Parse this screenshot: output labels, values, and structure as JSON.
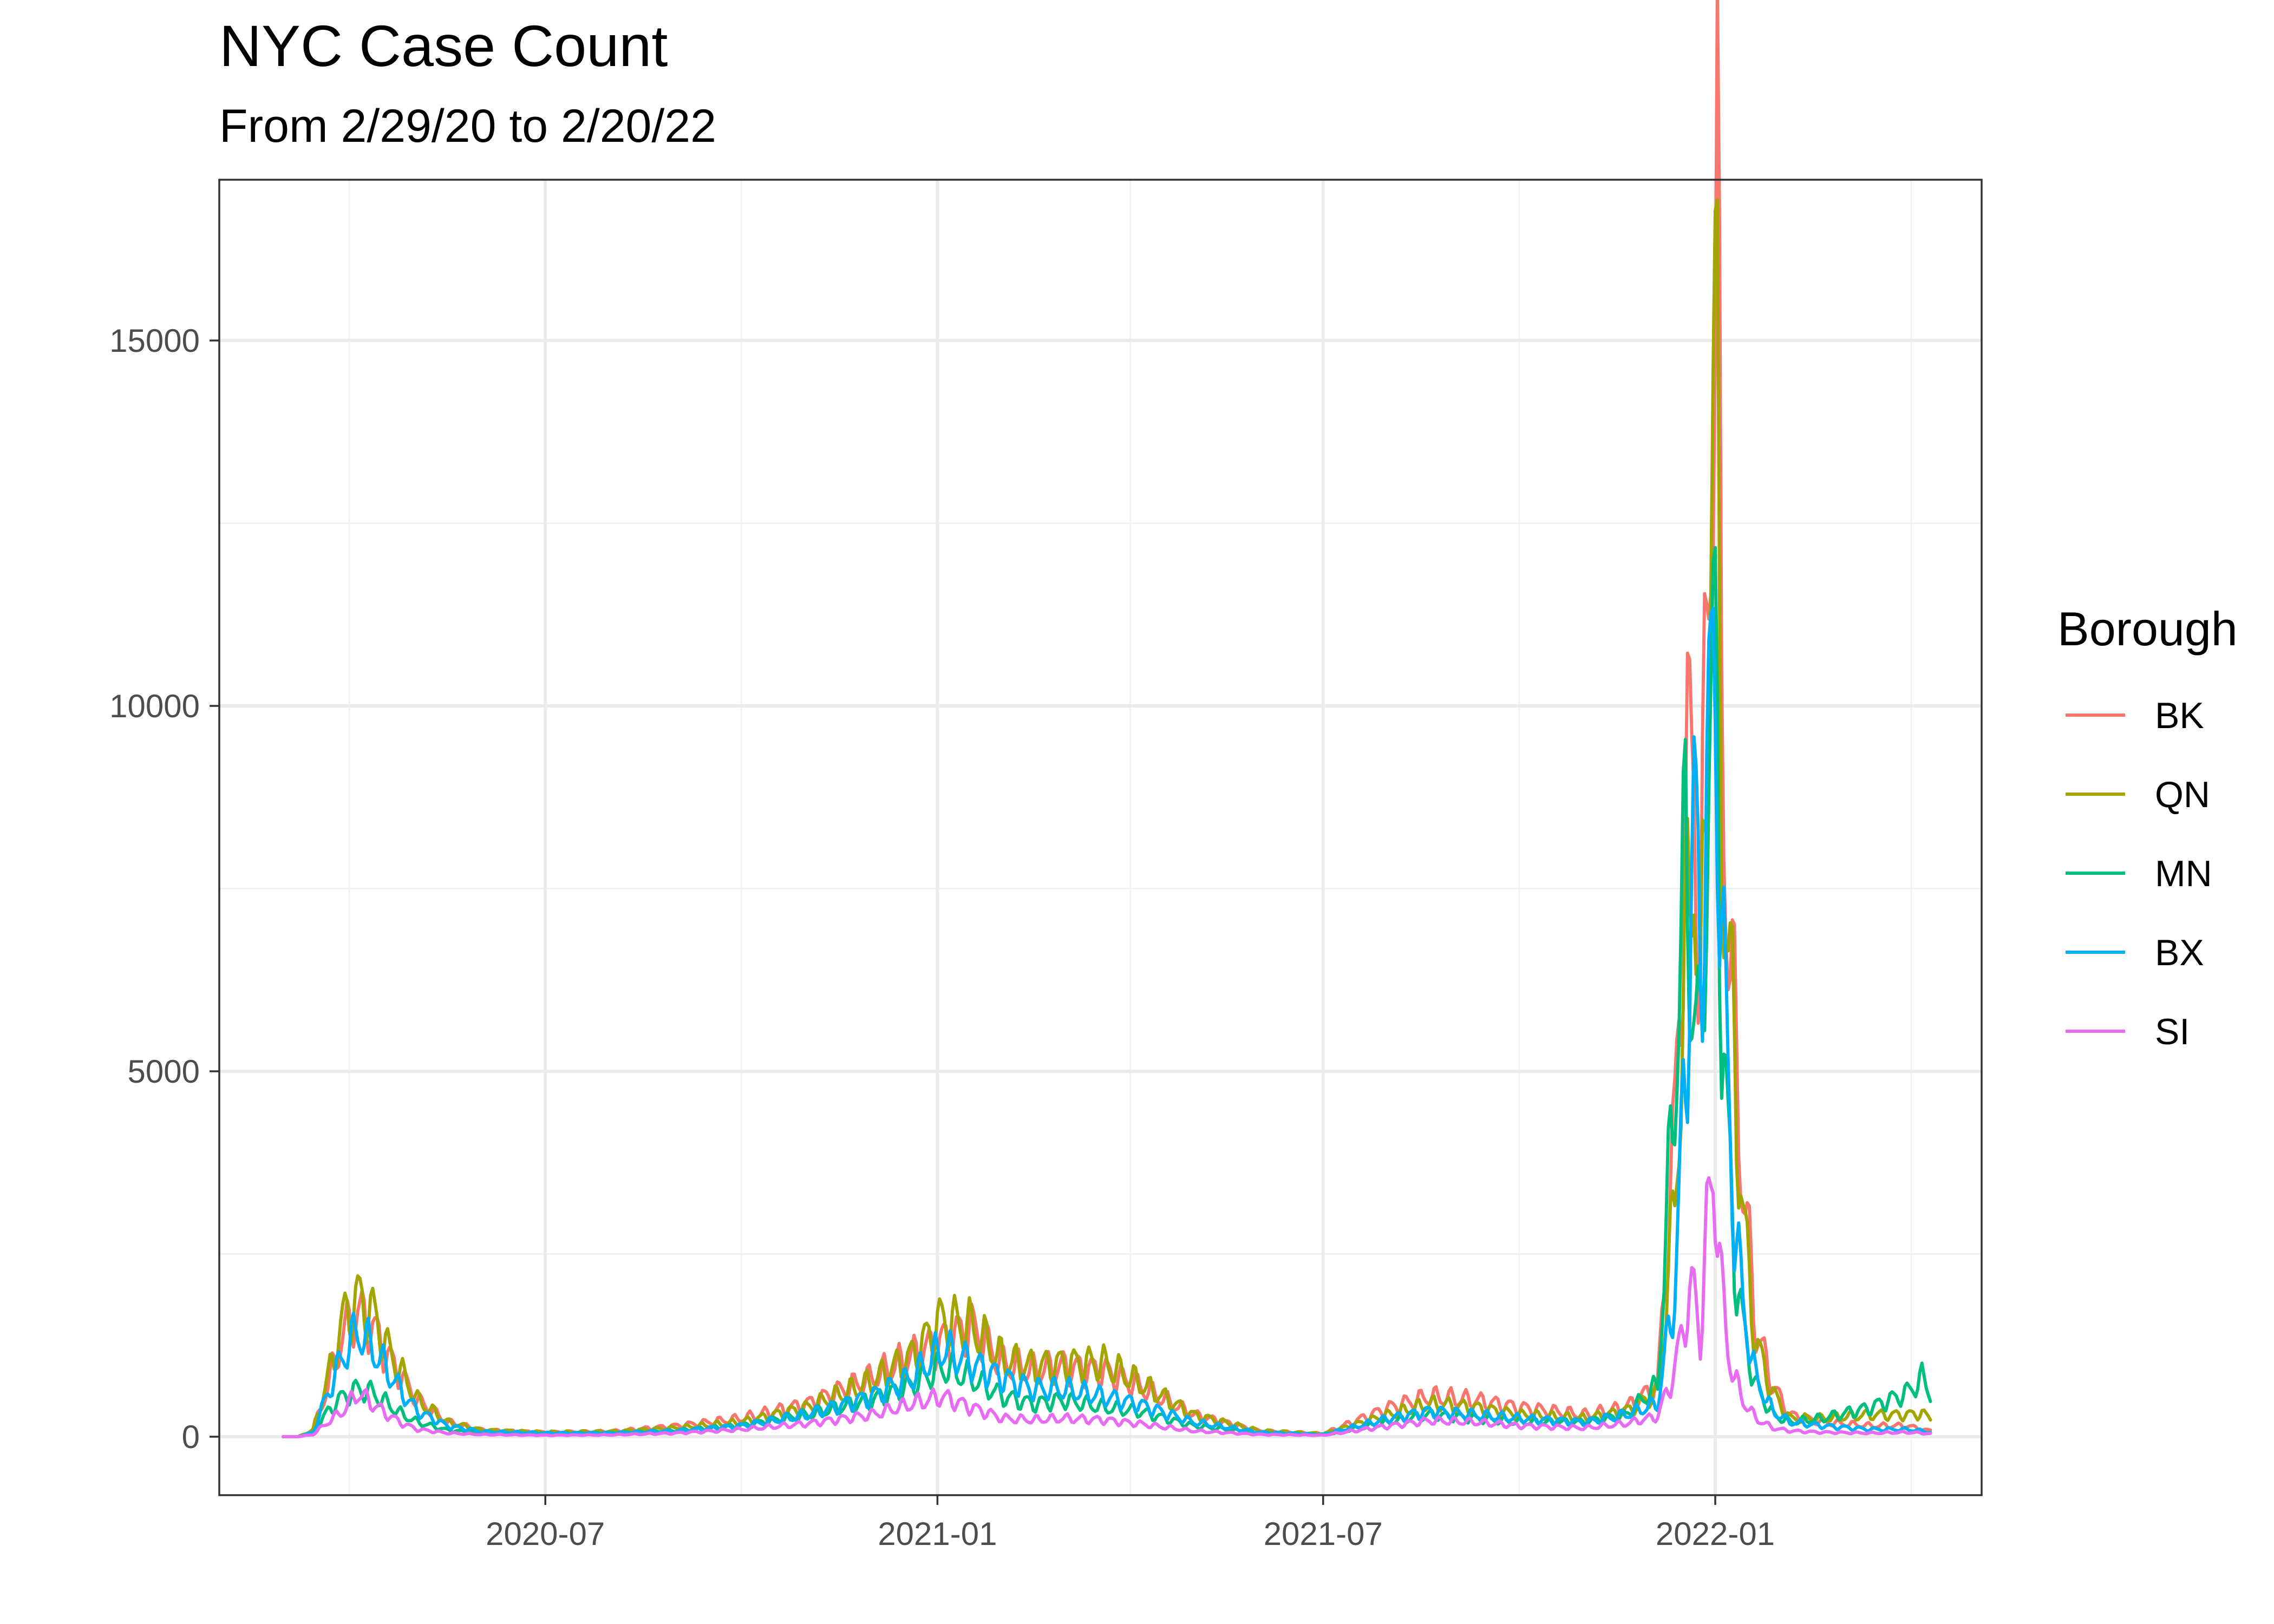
{
  "chart_data": {
    "type": "line",
    "title": "NYC Case Count",
    "subtitle": "From 2/29/20 to 2/20/22",
    "xlabel": "",
    "ylabel": "",
    "x_tick_labels": [
      "2020-07",
      "2021-01",
      "2021-07",
      "2022-01"
    ],
    "x_ticks": [
      "2020-07-01",
      "2021-01-01",
      "2021-07-01",
      "2022-01-01"
    ],
    "y_ticks": [
      0,
      5000,
      10000,
      15000
    ],
    "y_tick_labels": [
      "0",
      "5000",
      "10000",
      "15000"
    ],
    "ylim": [
      -800,
      17200
    ],
    "xlim": [
      "2020-01-30",
      "2022-05-06"
    ],
    "grid": true,
    "legend": {
      "title": "Borough",
      "placement": "right"
    },
    "x": [
      "2020-02-29",
      "2020-03-07",
      "2020-03-14",
      "2020-03-21",
      "2020-03-28",
      "2020-04-04",
      "2020-04-11",
      "2020-04-18",
      "2020-04-25",
      "2020-05-02",
      "2020-05-16",
      "2020-06-01",
      "2020-07-01",
      "2020-08-01",
      "2020-09-01",
      "2020-10-01",
      "2020-11-01",
      "2020-12-01",
      "2020-12-20",
      "2021-01-03",
      "2021-01-17",
      "2021-02-01",
      "2021-02-15",
      "2021-03-01",
      "2021-03-20",
      "2021-04-05",
      "2021-05-01",
      "2021-06-01",
      "2021-07-01",
      "2021-08-01",
      "2021-08-20",
      "2021-09-10",
      "2021-10-01",
      "2021-11-01",
      "2021-11-20",
      "2021-12-05",
      "2021-12-13",
      "2021-12-18",
      "2021-12-22",
      "2021-12-25",
      "2021-12-28",
      "2021-12-31",
      "2022-01-02",
      "2022-01-04",
      "2022-01-07",
      "2022-01-10",
      "2022-01-14",
      "2022-01-20",
      "2022-01-28",
      "2022-02-05",
      "2022-02-20",
      "2022-03-15",
      "2022-04-01",
      "2022-04-08",
      "2022-04-12"
    ],
    "series": [
      {
        "name": "BK",
        "color": "#F8766D",
        "values": [
          0,
          0,
          80,
          700,
          1400,
          1700,
          1500,
          1100,
          800,
          500,
          200,
          90,
          60,
          70,
          150,
          250,
          450,
          800,
          1100,
          1300,
          1500,
          1000,
          900,
          950,
          900,
          700,
          300,
          80,
          40,
          400,
          550,
          500,
          400,
          300,
          400,
          700,
          4200,
          8500,
          9400,
          6200,
          11000,
          15000,
          16500,
          10000,
          7200,
          5500,
          3500,
          1500,
          700,
          300,
          200,
          150,
          150,
          100,
          80
        ]
      },
      {
        "name": "QN",
        "color": "#A3A500",
        "values": [
          0,
          0,
          90,
          800,
          1600,
          1900,
          1700,
          1200,
          850,
          500,
          200,
          90,
          60,
          70,
          120,
          200,
          400,
          750,
          1100,
          1600,
          1500,
          1050,
          950,
          1000,
          1000,
          750,
          300,
          80,
          40,
          300,
          450,
          400,
          300,
          250,
          350,
          600,
          3200,
          6500,
          8500,
          5200,
          10000,
          14600,
          13500,
          9000,
          6500,
          5200,
          3000,
          1300,
          600,
          250,
          250,
          300,
          300,
          320,
          250
        ]
      },
      {
        "name": "MN",
        "color": "#00BF7D",
        "values": [
          0,
          0,
          50,
          350,
          550,
          650,
          600,
          450,
          300,
          200,
          90,
          50,
          40,
          50,
          80,
          150,
          300,
          500,
          700,
          950,
          800,
          550,
          450,
          500,
          400,
          350,
          150,
          50,
          30,
          200,
          300,
          250,
          200,
          200,
          300,
          700,
          4900,
          7900,
          6000,
          5000,
          8500,
          10200,
          10000,
          6000,
          4000,
          2500,
          1500,
          700,
          300,
          200,
          250,
          400,
          600,
          800,
          600
        ]
      },
      {
        "name": "BX",
        "color": "#00B0F6",
        "values": [
          0,
          0,
          60,
          600,
          1100,
          1450,
          1200,
          900,
          600,
          350,
          150,
          70,
          50,
          50,
          80,
          150,
          300,
          550,
          800,
          1200,
          1000,
          800,
          650,
          650,
          550,
          450,
          200,
          60,
          30,
          250,
          350,
          300,
          250,
          200,
          300,
          450,
          2000,
          5000,
          8500,
          6500,
          9000,
          10100,
          9800,
          7000,
          4800,
          3000,
          1800,
          800,
          350,
          200,
          150,
          100,
          100,
          80,
          60
        ]
      },
      {
        "name": "SI",
        "color": "#E76BF3",
        "values": [
          0,
          0,
          30,
          200,
          350,
          600,
          450,
          300,
          180,
          100,
          50,
          30,
          20,
          25,
          50,
          100,
          180,
          300,
          450,
          550,
          400,
          250,
          230,
          250,
          230,
          180,
          80,
          30,
          20,
          150,
          220,
          200,
          150,
          120,
          180,
          280,
          900,
          1700,
          2000,
          1400,
          2800,
          3600,
          3100,
          2000,
          1200,
          800,
          500,
          250,
          120,
          80,
          60,
          50,
          60,
          50,
          40
        ]
      }
    ]
  }
}
